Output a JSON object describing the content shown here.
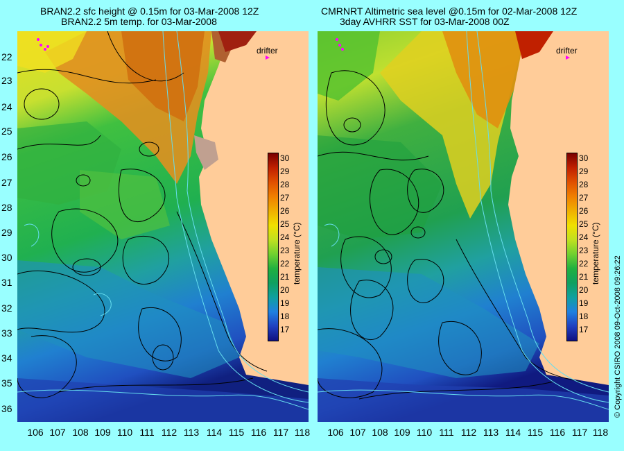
{
  "left_panel": {
    "title_line1": "BRAN2.2 sfc height @ 0.15m for 03-Mar-2008 12Z",
    "title_line2": "BRAN2.2 5m temp. for 03-Mar-2008",
    "drifter_label": "drifter"
  },
  "right_panel": {
    "title_line1": "CMRNRT Altimetric sea level  @0.15m  for 02-Mar-2008 12Z",
    "title_line2": "3day AVHRR SST for 03-Mar-2008 00Z",
    "drifter_label": "drifter"
  },
  "y_axis_labels": [
    "22",
    "23",
    "24",
    "25",
    "26",
    "27",
    "28",
    "29",
    "30",
    "31",
    "32",
    "33",
    "34",
    "35",
    "36"
  ],
  "x_axis_labels": [
    "106",
    "107",
    "108",
    "109",
    "110",
    "111",
    "112",
    "113",
    "114",
    "115",
    "116",
    "117",
    "118"
  ],
  "colorbar": {
    "labels": [
      "30",
      "29",
      "28",
      "27",
      "26",
      "25",
      "24",
      "23",
      "22",
      "21",
      "20",
      "19",
      "18",
      "17"
    ],
    "unit": "temperature (°C)",
    "colors_top_to_bottom": [
      "#7a0000",
      "#c02000",
      "#e05000",
      "#f08000",
      "#f0b000",
      "#f0e000",
      "#c0e020",
      "#70d030",
      "#20b040",
      "#10a060",
      "#10a0a0",
      "#2080e0",
      "#2040c0",
      "#101080"
    ]
  },
  "colors": {
    "background": "#99ffff",
    "land": "#ffcc99",
    "drifter_marker": "#ff00ff",
    "contour": "#000000",
    "bathymetry": "#66ddee"
  },
  "credit": "© Copyright CSIRO 2008   09-Oct-2008 09:26:22"
}
